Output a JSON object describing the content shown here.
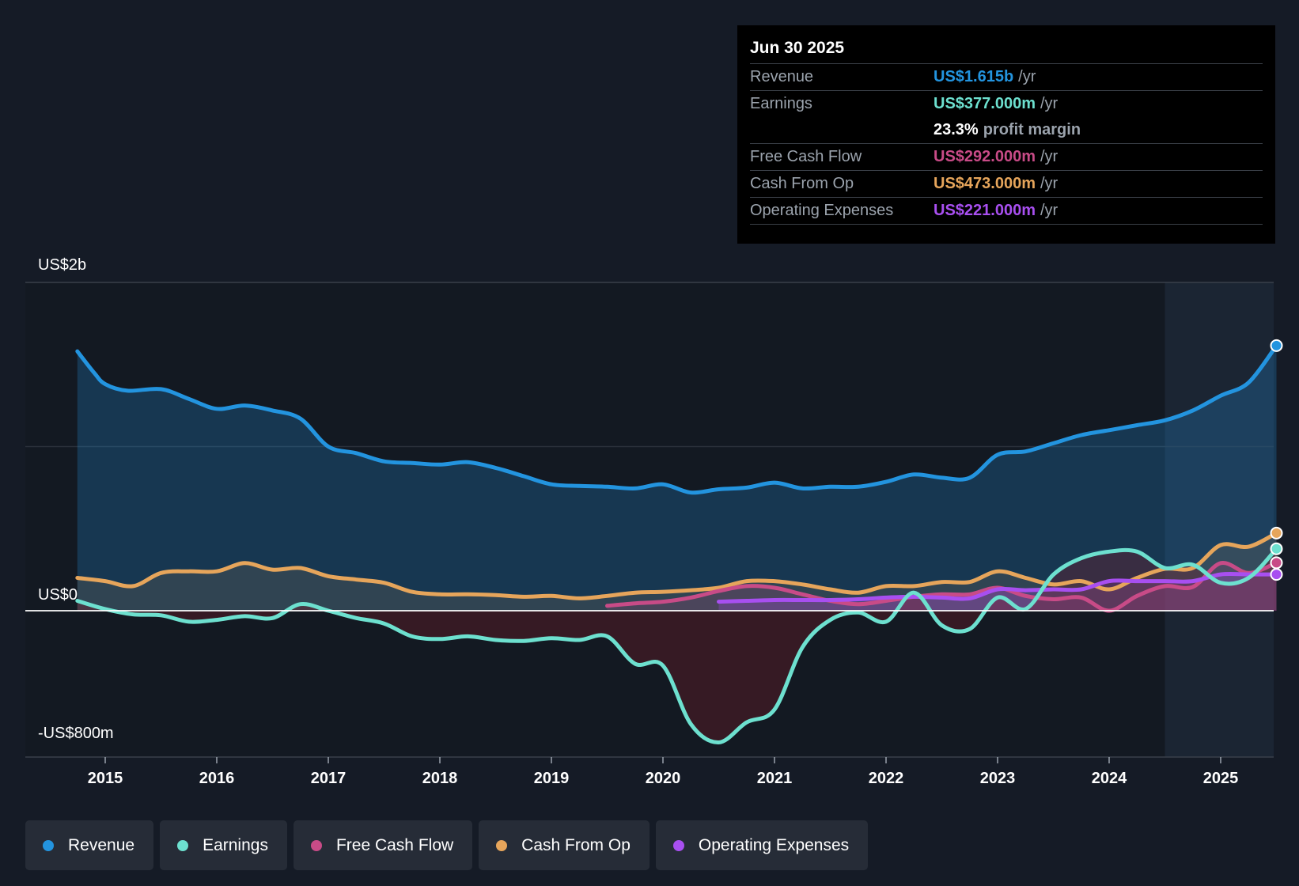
{
  "tooltip": {
    "date": "Jun 30 2025",
    "rows": [
      {
        "label": "Revenue",
        "value": "US$1.615b",
        "unit": "/yr"
      },
      {
        "label": "Earnings",
        "value": "US$377.000m",
        "unit": "/yr"
      },
      {
        "label": "",
        "value": "23.3%",
        "unit": "profit margin"
      },
      {
        "label": "Free Cash Flow",
        "value": "US$292.000m",
        "unit": "/yr"
      },
      {
        "label": "Cash From Op",
        "value": "US$473.000m",
        "unit": "/yr"
      },
      {
        "label": "Operating Expenses",
        "value": "US$221.000m",
        "unit": "/yr"
      }
    ]
  },
  "legend": [
    {
      "label": "Revenue"
    },
    {
      "label": "Earnings"
    },
    {
      "label": "Free Cash Flow"
    },
    {
      "label": "Cash From Op"
    },
    {
      "label": "Operating Expenses"
    }
  ],
  "colors": {
    "revenue": "#2394df",
    "earnings": "#6de0cf",
    "fcf": "#c84b87",
    "cfo": "#e6a55b",
    "opex": "#a84ff0",
    "background": "#151b26"
  },
  "chart_data": {
    "type": "line",
    "title": "",
    "xlabel": "",
    "ylabel": "",
    "ylim": [
      -800,
      2000
    ],
    "y_axis_labels": [
      "US$2b",
      "US$0",
      "-US$800m"
    ],
    "x_ticks": [
      2015,
      2016,
      2017,
      2018,
      2019,
      2020,
      2021,
      2022,
      2023,
      2024,
      2025
    ],
    "forecast_shading_start": 2024.5,
    "series": [
      {
        "name": "Revenue",
        "key": "revenue",
        "fill": "area",
        "points": [
          [
            2014.75,
            1580
          ],
          [
            2014.9,
            1450
          ],
          [
            2015.0,
            1380
          ],
          [
            2015.2,
            1340
          ],
          [
            2015.5,
            1350
          ],
          [
            2015.75,
            1290
          ],
          [
            2016.0,
            1230
          ],
          [
            2016.25,
            1250
          ],
          [
            2016.5,
            1220
          ],
          [
            2016.75,
            1170
          ],
          [
            2017.0,
            1000
          ],
          [
            2017.25,
            960
          ],
          [
            2017.5,
            910
          ],
          [
            2017.75,
            900
          ],
          [
            2018.0,
            890
          ],
          [
            2018.25,
            905
          ],
          [
            2018.5,
            870
          ],
          [
            2018.75,
            820
          ],
          [
            2019.0,
            770
          ],
          [
            2019.25,
            760
          ],
          [
            2019.5,
            755
          ],
          [
            2019.75,
            745
          ],
          [
            2020.0,
            770
          ],
          [
            2020.25,
            720
          ],
          [
            2020.5,
            740
          ],
          [
            2020.75,
            750
          ],
          [
            2021.0,
            780
          ],
          [
            2021.25,
            745
          ],
          [
            2021.5,
            755
          ],
          [
            2021.75,
            755
          ],
          [
            2022.0,
            785
          ],
          [
            2022.25,
            830
          ],
          [
            2022.5,
            810
          ],
          [
            2022.75,
            810
          ],
          [
            2023.0,
            950
          ],
          [
            2023.25,
            970
          ],
          [
            2023.5,
            1020
          ],
          [
            2023.75,
            1070
          ],
          [
            2024.0,
            1100
          ],
          [
            2024.25,
            1130
          ],
          [
            2024.5,
            1160
          ],
          [
            2024.75,
            1220
          ],
          [
            2025.0,
            1310
          ],
          [
            2025.25,
            1390
          ],
          [
            2025.5,
            1615
          ]
        ]
      },
      {
        "name": "Earnings",
        "key": "earnings",
        "fill": "zero",
        "points": [
          [
            2014.75,
            60
          ],
          [
            2015.0,
            10
          ],
          [
            2015.25,
            -20
          ],
          [
            2015.5,
            -25
          ],
          [
            2015.75,
            -60
          ],
          [
            2016.0,
            -50
          ],
          [
            2016.25,
            -30
          ],
          [
            2016.5,
            -40
          ],
          [
            2016.75,
            40
          ],
          [
            2017.0,
            0
          ],
          [
            2017.25,
            -40
          ],
          [
            2017.5,
            -70
          ],
          [
            2017.75,
            -140
          ],
          [
            2018.0,
            -155
          ],
          [
            2018.25,
            -140
          ],
          [
            2018.5,
            -160
          ],
          [
            2018.75,
            -165
          ],
          [
            2019.0,
            -150
          ],
          [
            2019.25,
            -160
          ],
          [
            2019.5,
            -140
          ],
          [
            2019.75,
            -290
          ],
          [
            2020.0,
            -300
          ],
          [
            2020.25,
            -620
          ],
          [
            2020.5,
            -720
          ],
          [
            2020.75,
            -610
          ],
          [
            2021.0,
            -540
          ],
          [
            2021.25,
            -200
          ],
          [
            2021.5,
            -50
          ],
          [
            2021.75,
            -10
          ],
          [
            2022.0,
            -60
          ],
          [
            2022.25,
            110
          ],
          [
            2022.5,
            -80
          ],
          [
            2022.75,
            -100
          ],
          [
            2023.0,
            80
          ],
          [
            2023.25,
            10
          ],
          [
            2023.5,
            220
          ],
          [
            2023.75,
            320
          ],
          [
            2024.0,
            360
          ],
          [
            2024.25,
            360
          ],
          [
            2024.5,
            260
          ],
          [
            2024.75,
            280
          ],
          [
            2025.0,
            170
          ],
          [
            2025.25,
            200
          ],
          [
            2025.5,
            377
          ]
        ]
      },
      {
        "name": "Free Cash Flow",
        "key": "fcf",
        "fill": "zero",
        "points": [
          [
            2019.5,
            30
          ],
          [
            2019.75,
            45
          ],
          [
            2020.0,
            55
          ],
          [
            2020.25,
            80
          ],
          [
            2020.5,
            120
          ],
          [
            2020.75,
            150
          ],
          [
            2021.0,
            140
          ],
          [
            2021.25,
            100
          ],
          [
            2021.5,
            60
          ],
          [
            2021.75,
            40
          ],
          [
            2022.0,
            60
          ],
          [
            2022.25,
            85
          ],
          [
            2022.5,
            100
          ],
          [
            2022.75,
            100
          ],
          [
            2023.0,
            140
          ],
          [
            2023.25,
            90
          ],
          [
            2023.5,
            70
          ],
          [
            2023.75,
            80
          ],
          [
            2024.0,
            0
          ],
          [
            2024.25,
            90
          ],
          [
            2024.5,
            150
          ],
          [
            2024.75,
            145
          ],
          [
            2025.0,
            290
          ],
          [
            2025.25,
            230
          ],
          [
            2025.5,
            292
          ]
        ]
      },
      {
        "name": "Cash From Op",
        "key": "cfo",
        "fill": "zero",
        "points": [
          [
            2014.75,
            200
          ],
          [
            2015.0,
            180
          ],
          [
            2015.25,
            150
          ],
          [
            2015.5,
            230
          ],
          [
            2015.75,
            240
          ],
          [
            2016.0,
            240
          ],
          [
            2016.25,
            290
          ],
          [
            2016.5,
            250
          ],
          [
            2016.75,
            260
          ],
          [
            2017.0,
            210
          ],
          [
            2017.25,
            190
          ],
          [
            2017.5,
            170
          ],
          [
            2017.75,
            115
          ],
          [
            2018.0,
            100
          ],
          [
            2018.25,
            100
          ],
          [
            2018.5,
            95
          ],
          [
            2018.75,
            85
          ],
          [
            2019.0,
            90
          ],
          [
            2019.25,
            75
          ],
          [
            2019.5,
            90
          ],
          [
            2019.75,
            110
          ],
          [
            2020.0,
            115
          ],
          [
            2020.25,
            125
          ],
          [
            2020.5,
            140
          ],
          [
            2020.75,
            180
          ],
          [
            2021.0,
            180
          ],
          [
            2021.25,
            160
          ],
          [
            2021.5,
            130
          ],
          [
            2021.75,
            110
          ],
          [
            2022.0,
            150
          ],
          [
            2022.25,
            150
          ],
          [
            2022.5,
            175
          ],
          [
            2022.75,
            175
          ],
          [
            2023.0,
            240
          ],
          [
            2023.25,
            200
          ],
          [
            2023.5,
            160
          ],
          [
            2023.75,
            180
          ],
          [
            2024.0,
            130
          ],
          [
            2024.25,
            200
          ],
          [
            2024.5,
            255
          ],
          [
            2024.75,
            260
          ],
          [
            2025.0,
            400
          ],
          [
            2025.25,
            390
          ],
          [
            2025.5,
            473
          ]
        ]
      },
      {
        "name": "Operating Expenses",
        "key": "opex",
        "fill": "zero",
        "points": [
          [
            2020.5,
            55
          ],
          [
            2020.75,
            60
          ],
          [
            2021.0,
            65
          ],
          [
            2021.25,
            65
          ],
          [
            2021.5,
            65
          ],
          [
            2021.75,
            70
          ],
          [
            2022.0,
            80
          ],
          [
            2022.25,
            85
          ],
          [
            2022.5,
            80
          ],
          [
            2022.75,
            75
          ],
          [
            2023.0,
            130
          ],
          [
            2023.25,
            125
          ],
          [
            2023.5,
            130
          ],
          [
            2023.75,
            130
          ],
          [
            2024.0,
            180
          ],
          [
            2024.25,
            180
          ],
          [
            2024.5,
            180
          ],
          [
            2024.75,
            180
          ],
          [
            2025.0,
            221
          ],
          [
            2025.25,
            221
          ],
          [
            2025.5,
            221
          ]
        ]
      }
    ]
  }
}
